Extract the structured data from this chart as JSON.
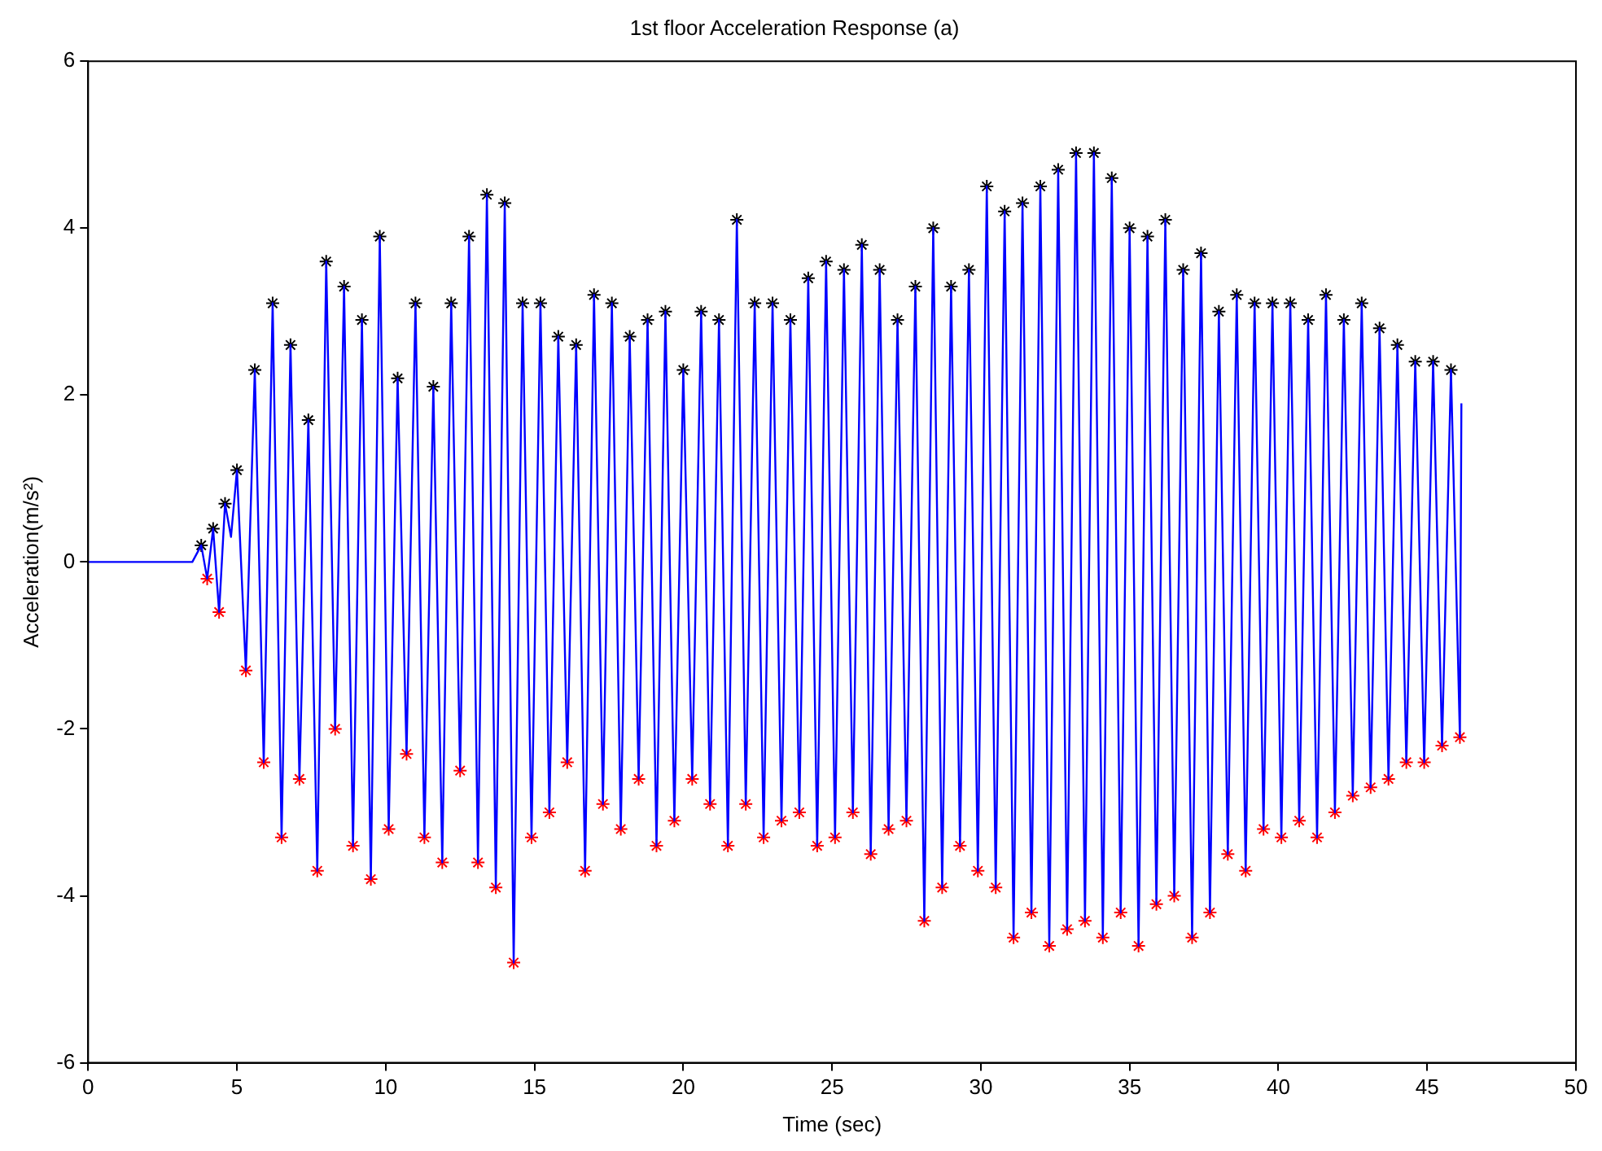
{
  "chart_data": {
    "type": "line",
    "title": "1st floor Acceleration Response (a)",
    "xlabel": "Time (sec)",
    "ylabel": "Acceleration(m/s²)",
    "xlim": [
      0,
      50
    ],
    "xticks": [
      0,
      5,
      10,
      15,
      20,
      25,
      30,
      35,
      40,
      45,
      50
    ],
    "ylim": [
      -6,
      6
    ],
    "yticks": [
      -6,
      -4,
      -2,
      0,
      2,
      4,
      6
    ],
    "series": [
      {
        "color": "#0000ff",
        "x": [
          0,
          3.0,
          3.5,
          3.8,
          4.0,
          4.2,
          4.4,
          4.6,
          4.8,
          5.0,
          5.3,
          5.6,
          5.9,
          6.2,
          6.5,
          6.8,
          7.1,
          7.4,
          7.7,
          8.0,
          8.3,
          8.6,
          8.9,
          9.2,
          9.5,
          9.8,
          10.1,
          10.4,
          10.7,
          11.0,
          11.3,
          11.6,
          11.9,
          12.2,
          12.5,
          12.8,
          13.1,
          13.4,
          13.7,
          14.0,
          14.3,
          14.6,
          14.9,
          15.2,
          15.5,
          15.8,
          16.1,
          16.4,
          16.7,
          17.0,
          17.3,
          17.6,
          17.9,
          18.2,
          18.5,
          18.8,
          19.1,
          19.4,
          19.7,
          20.0,
          20.3,
          20.6,
          20.9,
          21.2,
          21.5,
          21.8,
          22.1,
          22.4,
          22.7,
          23.0,
          23.3,
          23.6,
          23.9,
          24.2,
          24.5,
          24.8,
          25.1,
          25.4,
          25.7,
          26.0,
          26.3,
          26.6,
          26.9,
          27.2,
          27.5,
          27.8,
          28.1,
          28.4,
          28.7,
          29.0,
          29.3,
          29.6,
          29.9,
          30.2,
          30.5,
          30.8,
          31.1,
          31.4,
          31.7,
          32.0,
          32.3,
          32.6,
          32.9,
          33.2,
          33.5,
          33.8,
          34.1,
          34.4,
          34.7,
          35.0,
          35.3,
          35.6,
          35.9,
          36.2,
          36.5,
          36.8,
          37.1,
          37.4,
          37.7,
          38.0,
          38.3,
          38.6,
          38.9,
          39.2,
          39.5,
          39.8,
          40.1,
          40.4,
          40.7,
          41.0,
          41.3,
          41.6,
          41.9,
          42.2,
          42.5,
          42.8,
          43.1,
          43.4,
          43.7,
          44.0,
          44.3,
          44.6,
          44.9,
          45.2,
          45.5,
          45.8,
          46.1,
          46.15
        ],
        "values": [
          0,
          0,
          0,
          0.2,
          -0.2,
          0.4,
          -0.6,
          0.7,
          0.3,
          1.1,
          -1.3,
          2.3,
          -2.4,
          3.1,
          -3.3,
          2.6,
          -2.6,
          1.7,
          -3.7,
          3.6,
          -2.0,
          3.3,
          -3.4,
          2.9,
          -3.8,
          3.9,
          -3.2,
          2.2,
          -2.3,
          3.1,
          -3.3,
          2.1,
          -3.6,
          3.1,
          -2.5,
          3.9,
          -3.6,
          4.4,
          -3.9,
          4.3,
          -4.8,
          3.1,
          -3.3,
          3.1,
          -3.0,
          2.7,
          -2.4,
          2.6,
          -3.7,
          3.2,
          -2.9,
          3.1,
          -3.2,
          2.7,
          -2.6,
          2.9,
          -3.4,
          3.0,
          -3.1,
          2.3,
          -2.6,
          3.0,
          -2.9,
          2.9,
          -3.4,
          4.1,
          -2.9,
          3.1,
          -3.3,
          3.1,
          -3.1,
          2.9,
          -3.0,
          3.4,
          -3.4,
          3.6,
          -3.3,
          3.5,
          -3.0,
          3.8,
          -3.5,
          3.5,
          -3.2,
          2.9,
          -3.1,
          3.3,
          -4.3,
          4.0,
          -3.9,
          3.3,
          -3.4,
          3.5,
          -3.7,
          4.5,
          -3.9,
          4.2,
          -4.5,
          4.3,
          -4.2,
          4.5,
          -4.6,
          4.7,
          -4.4,
          4.9,
          -4.3,
          4.9,
          -4.5,
          4.6,
          -4.2,
          4.0,
          -4.6,
          3.9,
          -4.1,
          4.1,
          -4.0,
          3.5,
          -4.5,
          3.7,
          -4.2,
          3.0,
          -3.5,
          3.2,
          -3.7,
          3.1,
          -3.2,
          3.1,
          -3.3,
          3.1,
          -3.1,
          2.9,
          -3.3,
          3.2,
          -3.0,
          2.9,
          -2.8,
          3.1,
          -2.7,
          2.8,
          -2.6,
          2.6,
          -2.4,
          2.4,
          -2.4,
          2.4,
          -2.2,
          2.3,
          -2.1,
          1.9
        ]
      },
      {
        "type": "scatter",
        "color": "#000000",
        "marker": "cross",
        "x": [
          3.8,
          4.2,
          4.6,
          5.0,
          5.6,
          6.2,
          6.8,
          7.4,
          8.0,
          8.6,
          9.2,
          9.8,
          10.4,
          11.0,
          11.6,
          12.2,
          12.8,
          13.4,
          14.0,
          14.6,
          15.2,
          15.8,
          16.4,
          17.0,
          17.6,
          18.2,
          18.8,
          19.4,
          20.0,
          20.6,
          21.2,
          21.8,
          22.4,
          23.0,
          23.6,
          24.2,
          24.8,
          25.4,
          26.0,
          26.6,
          27.2,
          27.8,
          28.4,
          29.0,
          29.6,
          30.2,
          30.8,
          31.4,
          32.0,
          32.6,
          33.2,
          33.8,
          34.4,
          35.0,
          35.6,
          36.2,
          36.8,
          37.4,
          38.0,
          38.6,
          39.2,
          39.8,
          40.4,
          41.0,
          41.6,
          42.2,
          42.8,
          43.4,
          44.0,
          44.6,
          45.2,
          45.8
        ],
        "values": [
          0.2,
          0.4,
          0.7,
          1.1,
          2.3,
          3.1,
          2.6,
          1.7,
          3.6,
          3.3,
          2.9,
          3.9,
          2.2,
          3.1,
          2.1,
          3.1,
          3.9,
          4.4,
          4.3,
          3.1,
          3.1,
          2.7,
          2.6,
          3.2,
          3.1,
          2.7,
          2.9,
          3.0,
          2.3,
          3.0,
          2.9,
          4.1,
          3.1,
          3.1,
          2.9,
          3.4,
          3.6,
          3.5,
          3.8,
          3.5,
          2.9,
          3.3,
          4.0,
          3.3,
          3.5,
          4.5,
          4.2,
          4.3,
          4.5,
          4.7,
          4.9,
          4.9,
          4.6,
          4.0,
          3.9,
          4.1,
          3.5,
          3.7,
          3.0,
          3.2,
          3.1,
          3.1,
          3.1,
          2.9,
          3.2,
          2.9,
          3.1,
          2.8,
          2.6,
          2.4,
          2.4,
          2.3
        ]
      },
      {
        "type": "scatter",
        "color": "#ff0000",
        "marker": "cross",
        "x": [
          4.0,
          4.4,
          5.3,
          5.9,
          6.5,
          7.1,
          7.7,
          8.3,
          8.9,
          9.5,
          10.1,
          10.7,
          11.3,
          11.9,
          12.5,
          13.1,
          13.7,
          14.3,
          14.9,
          15.5,
          16.1,
          16.7,
          17.3,
          17.9,
          18.5,
          19.1,
          19.7,
          20.3,
          20.9,
          21.5,
          22.1,
          22.7,
          23.3,
          23.9,
          24.5,
          25.1,
          25.7,
          26.3,
          26.9,
          27.5,
          28.1,
          28.7,
          29.3,
          29.9,
          30.5,
          31.1,
          31.7,
          32.3,
          32.9,
          33.5,
          34.1,
          34.7,
          35.3,
          35.9,
          36.5,
          37.1,
          37.7,
          38.3,
          38.9,
          39.5,
          40.1,
          40.7,
          41.3,
          41.9,
          42.5,
          43.1,
          43.7,
          44.3,
          44.9,
          45.5,
          46.1
        ],
        "values": [
          -0.2,
          -0.6,
          -1.3,
          -2.4,
          -3.3,
          -2.6,
          -3.7,
          -2.0,
          -3.4,
          -3.8,
          -3.2,
          -2.3,
          -3.3,
          -3.6,
          -2.5,
          -3.6,
          -3.9,
          -4.8,
          -3.3,
          -3.0,
          -2.4,
          -3.7,
          -2.9,
          -3.2,
          -2.6,
          -3.4,
          -3.1,
          -2.6,
          -2.9,
          -3.4,
          -2.9,
          -3.3,
          -3.1,
          -3.0,
          -3.4,
          -3.3,
          -3.0,
          -3.5,
          -3.2,
          -3.1,
          -4.3,
          -3.9,
          -3.4,
          -3.7,
          -3.9,
          -4.5,
          -4.2,
          -4.6,
          -4.4,
          -4.3,
          -4.5,
          -4.2,
          -4.6,
          -4.1,
          -4.0,
          -4.5,
          -4.2,
          -3.5,
          -3.7,
          -3.2,
          -3.3,
          -3.1,
          -3.3,
          -3.0,
          -2.8,
          -2.7,
          -2.6,
          -2.4,
          -2.4,
          -2.2,
          -2.1
        ]
      }
    ]
  }
}
